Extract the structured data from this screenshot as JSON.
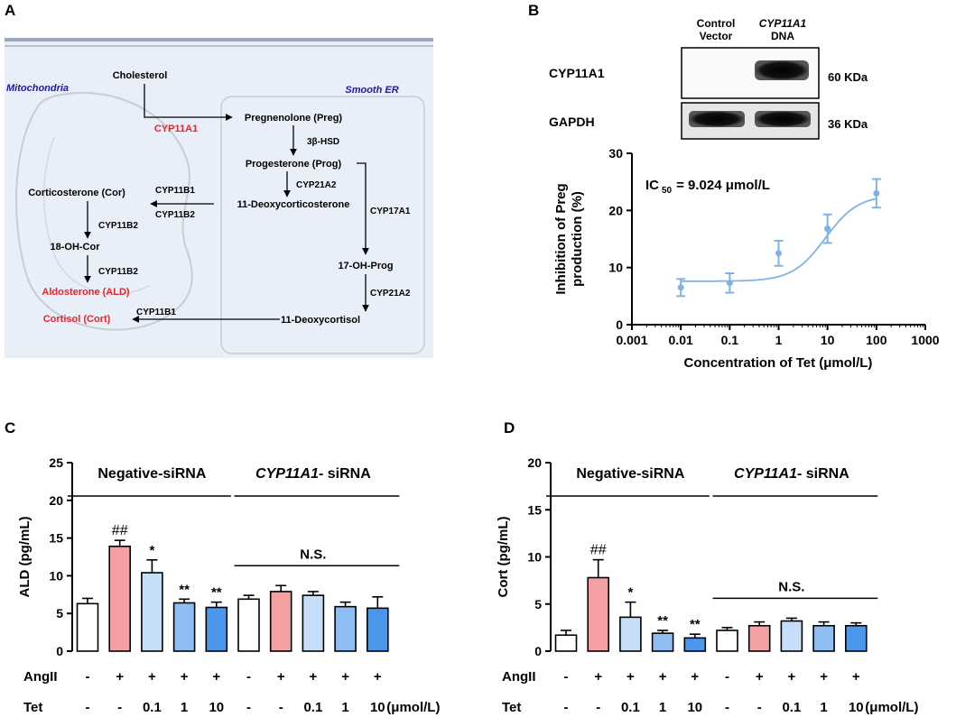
{
  "panels": {
    "a": "A",
    "b": "B",
    "c": "C",
    "d": "D"
  },
  "pathway": {
    "compartments": {
      "mito": "Mitochondria",
      "er": "Smooth ER"
    },
    "molecules": {
      "cholesterol": "Cholesterol",
      "preg": "Pregnenolone (Preg)",
      "prog": "Progesterone (Prog)",
      "doc": "11-Deoxycorticosterone",
      "ohprog": "17-OH-Prog",
      "deoxycortisol": "11-Deoxycortisol",
      "cor": "Corticosterone (Cor)",
      "ohcor": "18-OH-Cor",
      "ald": "Aldosterone (ALD)",
      "cort": "Cortisol (Cort)"
    },
    "enzymes": {
      "cyp11a1": "CYP11A1",
      "hsd": "3β-HSD",
      "cyp21a2_1": "CYP21A2",
      "cyp17a1": "CYP17A1",
      "cyp21a2_2": "CYP21A2",
      "cyp11b1_1": "CYP11B1",
      "cyp11b2_1": "CYP11B2",
      "cyp11b2_2": "CYP11B2",
      "cyp11b2_3": "CYP11B2",
      "cyp11b1_2": "CYP11B1"
    },
    "colors": {
      "highlight": "#e8252a",
      "compartment": "#1c1c9c",
      "background": "#e9eff8"
    }
  },
  "western": {
    "col1_l1": "Control",
    "col1_l2": "Vector",
    "col2_l1": "CYP11A1",
    "col2_l2": "DNA",
    "rows": [
      {
        "label": "CYP11A1",
        "size": "60 KDa"
      },
      {
        "label": "GAPDH",
        "size": "36 KDa"
      }
    ]
  },
  "chart_data": [
    {
      "panel": "B",
      "type": "scatter",
      "title": "",
      "ylabel_l1": "Inhibition of Preg",
      "ylabel_l2": "production (%)",
      "xlabel": "Concentration of Tet (μmol/L)",
      "annotation_main": "IC",
      "annotation_sub": "50",
      "annotation_rest": "= 9.024 μmol/L",
      "xscale": "log",
      "xlim": [
        0.001,
        1000
      ],
      "ylim": [
        0,
        30
      ],
      "xticks": [
        "0.001",
        "0.01",
        "0.1",
        "1",
        "10",
        "100",
        "1000"
      ],
      "yticks": [
        "0",
        "10",
        "20",
        "30"
      ],
      "x": [
        0.01,
        0.1,
        1,
        10,
        100
      ],
      "y": [
        6.5,
        7.3,
        12.5,
        16.8,
        23.0
      ],
      "err": [
        1.5,
        1.7,
        2.2,
        2.5,
        2.5
      ],
      "fit": {
        "bottom": 7.6,
        "top": 22.7,
        "ic50": 9.024,
        "hill": 1.3
      },
      "color": "#7fb2e5"
    },
    {
      "panel": "C",
      "type": "bar",
      "ylabel": "ALD (pg/mL)",
      "ylim": [
        0,
        25
      ],
      "yticks": [
        "0",
        "5",
        "10",
        "15",
        "20",
        "25"
      ],
      "values": [
        6.3,
        13.9,
        10.4,
        6.4,
        5.8,
        6.9,
        7.9,
        7.4,
        5.9,
        5.7
      ],
      "errors": [
        0.7,
        0.8,
        1.7,
        0.5,
        0.7,
        0.5,
        0.8,
        0.5,
        0.6,
        1.5
      ],
      "sig": [
        "",
        "##",
        "*",
        "**",
        "**",
        "",
        "",
        "",
        "",
        ""
      ],
      "group1": "Negative-siRNA",
      "group2_italic": "CYP11A1",
      "group2_rest": "- siRNA",
      "ns_label": "N.S.",
      "row1_label": "AngII",
      "row1": [
        "-",
        "+",
        "+",
        "+",
        "+",
        "-",
        "+",
        "+",
        "+",
        "+"
      ],
      "row2_label": "Tet",
      "row2": [
        "-",
        "-",
        "0.1",
        "1",
        "10",
        "-",
        "-",
        "0.1",
        "1",
        "10"
      ],
      "unit": "(μmol/L)"
    },
    {
      "panel": "D",
      "type": "bar",
      "ylabel": "Cort (pg/mL)",
      "ylim": [
        0,
        20
      ],
      "yticks": [
        "0",
        "5",
        "10",
        "15",
        "20"
      ],
      "values": [
        1.7,
        7.8,
        3.6,
        1.9,
        1.4,
        2.2,
        2.7,
        3.2,
        2.7,
        2.7
      ],
      "errors": [
        0.5,
        1.9,
        1.6,
        0.3,
        0.4,
        0.3,
        0.4,
        0.3,
        0.4,
        0.3
      ],
      "sig": [
        "",
        "##",
        "*",
        "**",
        "**",
        "",
        "",
        "",
        "",
        ""
      ],
      "group1": "Negative-siRNA",
      "group2_italic": "CYP11A1",
      "group2_rest": "- siRNA",
      "ns_label": "N.S.",
      "row1_label": "AngII",
      "row1": [
        "-",
        "+",
        "+",
        "+",
        "+",
        "-",
        "+",
        "+",
        "+",
        "+"
      ],
      "row2_label": "Tet",
      "row2": [
        "-",
        "-",
        "0.1",
        "1",
        "10",
        "-",
        "-",
        "0.1",
        "1",
        "10"
      ],
      "unit": "(μmol/L)"
    }
  ],
  "bar_colors": [
    "#ffffff",
    "#f4a0a3",
    "#c7def8",
    "#8dbdf1",
    "#4c97ec",
    "#ffffff",
    "#f4a0a3",
    "#c7def8",
    "#8dbdf1",
    "#4c97ec"
  ]
}
